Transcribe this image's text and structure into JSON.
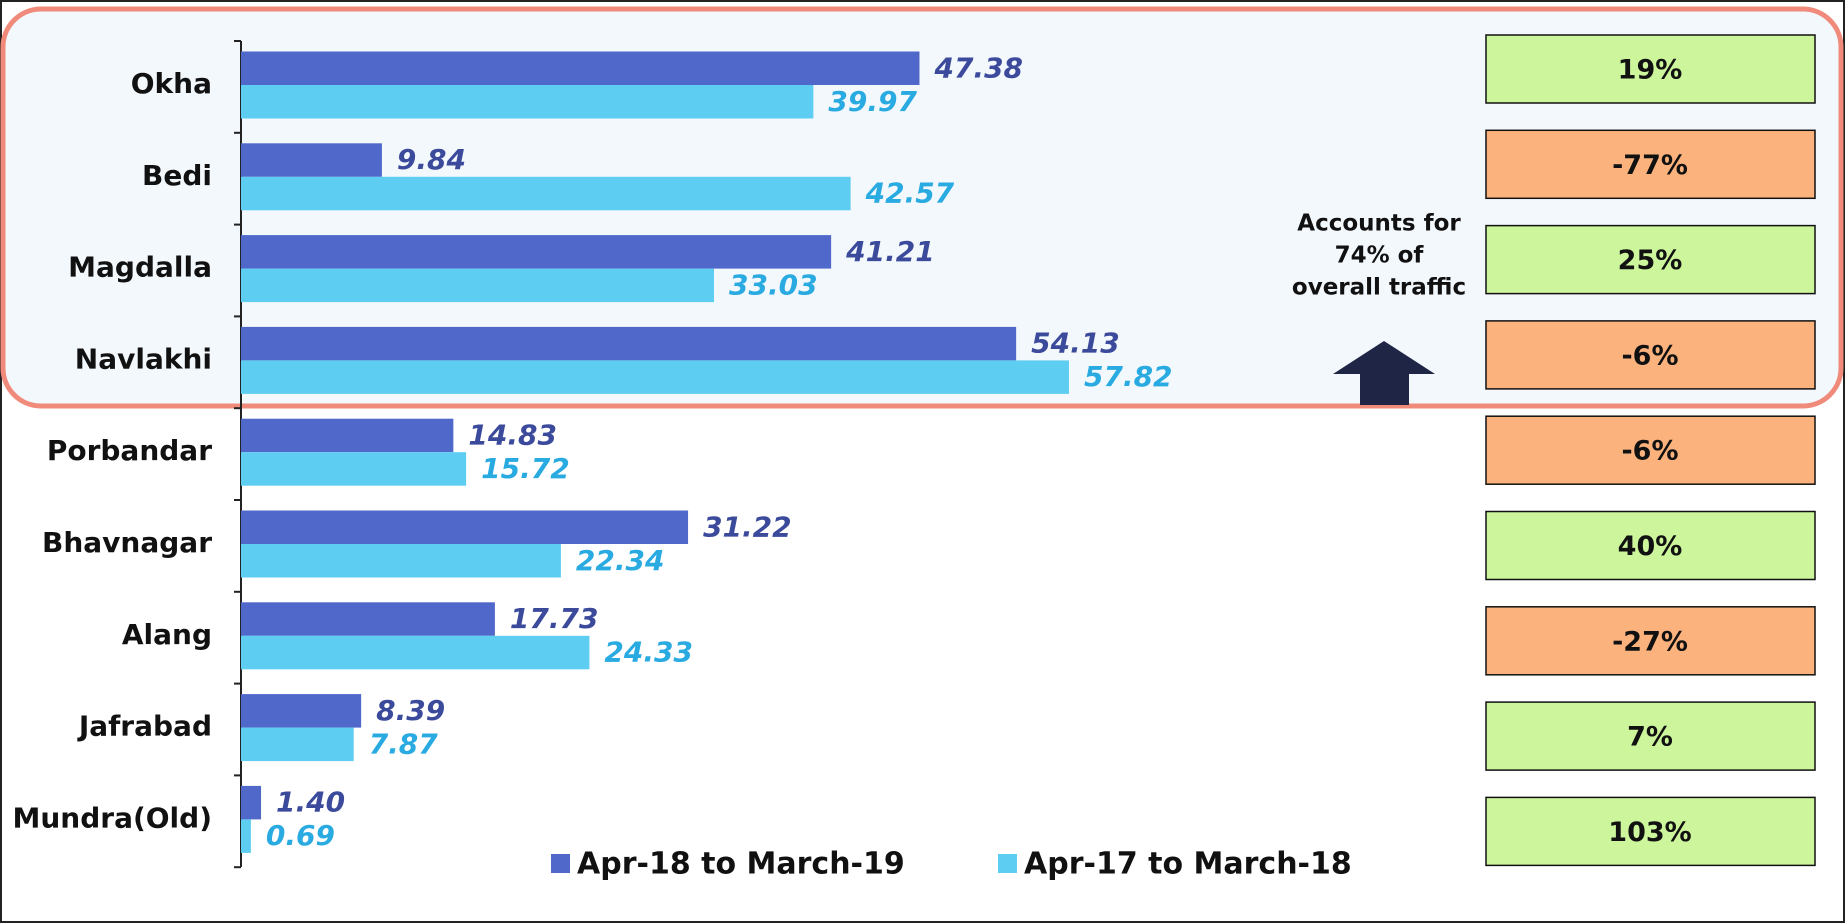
{
  "chart_data": {
    "type": "bar",
    "orientation": "horizontal",
    "categories": [
      "Okha",
      "Bedi",
      "Magdalla",
      "Navlakhi",
      "Porbandar",
      "Bhavnagar",
      "Alang",
      "Jafrabad",
      "Mundra(Old)"
    ],
    "series": [
      {
        "name": "Apr-18 to March-19",
        "color": "#4f68c9",
        "label_color": "#3c4a9c",
        "values": [
          47.38,
          9.84,
          41.21,
          54.13,
          14.83,
          31.22,
          17.73,
          8.39,
          1.4
        ],
        "value_labels": [
          "47.38",
          "9.84",
          "41.21",
          "54.13",
          "14.83",
          "31.22",
          "17.73",
          "8.39",
          "1.40"
        ]
      },
      {
        "name": "Apr-17 to March-18",
        "color": "#5ecdf2",
        "label_color": "#29abe2",
        "values": [
          39.97,
          42.57,
          33.03,
          57.82,
          15.72,
          22.34,
          24.33,
          7.87,
          0.69
        ],
        "value_labels": [
          "39.97",
          "42.57",
          "33.03",
          "57.82",
          "15.72",
          "22.34",
          "24.33",
          "7.87",
          "0.69"
        ]
      }
    ],
    "growth": {
      "values": [
        19,
        -77,
        25,
        -6,
        -6,
        40,
        -27,
        7,
        103
      ],
      "value_labels": [
        "19%",
        "-77%",
        "25%",
        "-6%",
        "-6%",
        "40%",
        "-27%",
        "7%",
        "103%"
      ],
      "positive_color": "#ccf59c",
      "negative_color": "#fbb27d"
    },
    "annotation": [
      "Accounts for",
      "74% of",
      "overall traffic"
    ],
    "legend": "bottom"
  }
}
